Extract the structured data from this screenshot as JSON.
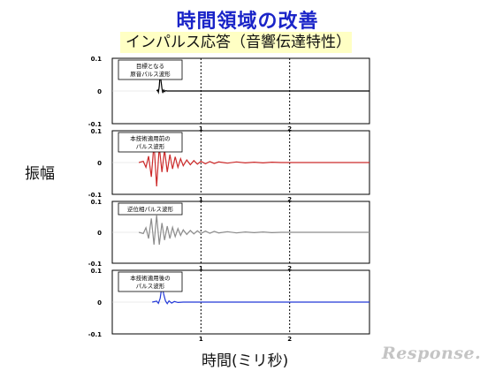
{
  "title": "時間領域の改善",
  "subtitle": "インパルス応答（音響伝達特性）",
  "y_axis_label": "振幅",
  "x_axis_label": "時間(ミリ秒)",
  "watermark": "Response.",
  "chart_data": [
    {
      "type": "line",
      "annotation": [
        "目標となる",
        "原音パルス波形"
      ],
      "color": "#000000",
      "ylim": [
        -0.1,
        0.1
      ],
      "yticks": [
        "0.1",
        "0",
        "-0.1"
      ],
      "xlim": [
        0,
        2.9
      ],
      "xticks": [
        "1",
        "2"
      ],
      "vlines": [
        1,
        2
      ],
      "grid": false,
      "series": [
        {
          "x": [
            0.5,
            0.51,
            0.52,
            0.53,
            0.54,
            0.55,
            0.56,
            0.57,
            0.58,
            0.59,
            0.6,
            0.62,
            0.8,
            1.2,
            1.6,
            2.0,
            2.4,
            2.9
          ],
          "y": [
            0,
            0.003,
            -0.004,
            0.015,
            0.055,
            0.03,
            0.008,
            -0.006,
            0.003,
            -0.002,
            0.001,
            0,
            0,
            0,
            0,
            0,
            0,
            0
          ]
        }
      ]
    },
    {
      "type": "line",
      "annotation": [
        "本技術適用前の",
        "パルス波形"
      ],
      "color": "#cc2a2a",
      "ylim": [
        -0.1,
        0.1
      ],
      "yticks": [
        "0.1",
        "0",
        "-0.1"
      ],
      "xlim": [
        0,
        2.9
      ],
      "xticks": [
        "1",
        "2"
      ],
      "vlines": [
        1,
        2
      ],
      "grid": false,
      "series": [
        {
          "x": [
            0.3,
            0.35,
            0.38,
            0.41,
            0.44,
            0.47,
            0.5,
            0.53,
            0.56,
            0.59,
            0.62,
            0.65,
            0.68,
            0.71,
            0.74,
            0.77,
            0.8,
            0.84,
            0.88,
            0.92,
            0.96,
            1.0,
            1.05,
            1.1,
            1.15,
            1.2,
            1.3,
            1.4,
            1.5,
            1.6,
            1.7,
            1.8,
            1.9,
            2.0,
            2.2,
            2.4,
            2.9
          ],
          "y": [
            0,
            0.004,
            -0.015,
            0.02,
            -0.045,
            0.06,
            -0.075,
            0.05,
            -0.03,
            0.04,
            -0.03,
            0.025,
            -0.02,
            0.018,
            -0.015,
            0.012,
            -0.01,
            0.008,
            -0.007,
            0.006,
            -0.005,
            0.004,
            -0.004,
            0.003,
            -0.003,
            0.002,
            -0.002,
            0.002,
            -0.001,
            0.001,
            -0.001,
            0.001,
            0,
            0,
            0,
            0,
            0
          ]
        }
      ]
    },
    {
      "type": "line",
      "annotation": [
        "逆位相パルス波形"
      ],
      "color": "#8c8c8c",
      "ylim": [
        -0.1,
        0.1
      ],
      "yticks": [
        "0.1",
        "0",
        "-0.1"
      ],
      "xlim": [
        0,
        2.9
      ],
      "xticks": [
        "1",
        "2"
      ],
      "vlines": [
        1,
        2
      ],
      "grid": false,
      "series": [
        {
          "x": [
            0.3,
            0.35,
            0.38,
            0.41,
            0.44,
            0.47,
            0.5,
            0.53,
            0.56,
            0.59,
            0.62,
            0.65,
            0.68,
            0.71,
            0.74,
            0.77,
            0.8,
            0.84,
            0.88,
            0.92,
            0.96,
            1.0,
            1.05,
            1.1,
            1.15,
            1.2,
            1.3,
            1.4,
            1.5,
            1.6,
            1.7,
            1.8,
            1.9,
            2.0,
            2.2,
            2.4,
            2.9
          ],
          "y": [
            0,
            -0.004,
            0.015,
            -0.02,
            0.045,
            -0.04,
            0.055,
            -0.04,
            0.03,
            -0.025,
            0.02,
            -0.02,
            0.016,
            -0.014,
            0.012,
            -0.01,
            0.008,
            -0.007,
            0.006,
            -0.005,
            0.005,
            -0.004,
            0.004,
            -0.003,
            0.003,
            -0.002,
            0.002,
            -0.002,
            0.001,
            -0.001,
            0.001,
            -0.001,
            0,
            0,
            0,
            0,
            0
          ]
        }
      ]
    },
    {
      "type": "line",
      "annotation": [
        "本技術適用後の",
        "パルス波形"
      ],
      "color": "#2238d8",
      "ylim": [
        -0.1,
        0.1
      ],
      "yticks": [
        "0.1",
        "0",
        "-0.1"
      ],
      "xlim": [
        0,
        2.9
      ],
      "xticks": [
        "1",
        "2"
      ],
      "vlines": [
        1,
        2
      ],
      "grid": false,
      "series": [
        {
          "x": [
            0.45,
            0.5,
            0.52,
            0.54,
            0.56,
            0.58,
            0.6,
            0.62,
            0.64,
            0.67,
            0.7,
            0.74,
            0.8,
            1.2,
            1.6,
            2.0,
            2.4,
            2.9
          ],
          "y": [
            0,
            0.003,
            -0.004,
            0.012,
            0.05,
            0.025,
            0.004,
            -0.005,
            0.004,
            -0.003,
            0.002,
            -0.001,
            0,
            0,
            0,
            0,
            0,
            0
          ]
        }
      ]
    }
  ]
}
